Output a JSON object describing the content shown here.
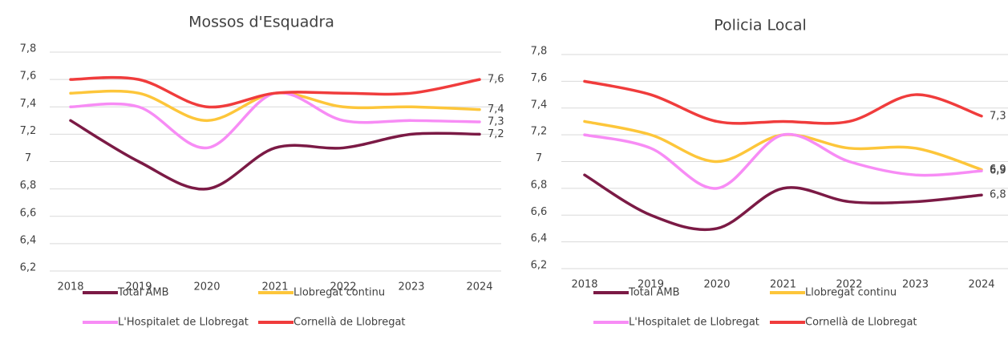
{
  "chart_data": [
    {
      "type": "line",
      "title": "Mossos d'Esquadra",
      "categories": [
        "2018",
        "2019",
        "2020",
        "2021",
        "2022",
        "2023",
        "2024"
      ],
      "ylim": [
        6.2,
        7.8
      ],
      "yticks": [
        {
          "value": 6.2,
          "label": "6,2"
        },
        {
          "value": 6.4,
          "label": "6,4"
        },
        {
          "value": 6.6,
          "label": "6,6"
        },
        {
          "value": 6.8,
          "label": "6,8"
        },
        7,
        {
          "value": 7.2,
          "label": "7,2"
        },
        {
          "value": 7.4,
          "label": "7,4"
        },
        {
          "value": 7.6,
          "label": "7,6"
        },
        {
          "value": 7.8,
          "label": "7,8"
        }
      ],
      "grid": true,
      "legend": "bottom",
      "series": [
        {
          "name": "Total AMB",
          "color": "#7b1a45",
          "values": [
            7.3,
            7.0,
            6.8,
            7.1,
            7.1,
            7.2,
            7.2
          ],
          "value_labels": [
            null,
            null,
            null,
            null,
            null,
            null,
            "7,2"
          ]
        },
        {
          "name": "Llobregat continu",
          "color": "#fdc63a",
          "values": [
            7.5,
            7.5,
            7.3,
            7.5,
            7.4,
            7.4,
            7.38
          ],
          "value_labels": [
            null,
            null,
            null,
            null,
            null,
            null,
            "7,4"
          ]
        },
        {
          "name": "L'Hospitalet de Llobregat",
          "color": "#f78cf5",
          "values": [
            7.4,
            7.4,
            7.1,
            7.5,
            7.3,
            7.3,
            7.29
          ],
          "value_labels": [
            null,
            null,
            null,
            null,
            null,
            null,
            "7,3"
          ]
        },
        {
          "name": "Cornellà de Llobregat",
          "color": "#f03c3c",
          "values": [
            7.6,
            7.6,
            7.4,
            7.5,
            7.5,
            7.5,
            7.6
          ],
          "value_labels": [
            null,
            null,
            null,
            null,
            null,
            null,
            "7,6"
          ]
        }
      ]
    },
    {
      "type": "line",
      "title": "Policia Local",
      "categories": [
        "2018",
        "2019",
        "2020",
        "2021",
        "2022",
        "2023",
        "2024"
      ],
      "ylim": [
        6.2,
        7.8
      ],
      "yticks": [
        {
          "value": 6.2,
          "label": "6,2"
        },
        {
          "value": 6.4,
          "label": "6,4"
        },
        {
          "value": 6.6,
          "label": "6,6"
        },
        {
          "value": 6.8,
          "label": "6,8"
        },
        7,
        {
          "value": 7.2,
          "label": "7,2"
        },
        {
          "value": 7.4,
          "label": "7,4"
        },
        {
          "value": 7.6,
          "label": "7,6"
        },
        {
          "value": 7.8,
          "label": "7,8"
        }
      ],
      "grid": true,
      "legend": "bottom",
      "series": [
        {
          "name": "Total AMB",
          "color": "#7b1a45",
          "values": [
            6.9,
            6.6,
            6.5,
            6.8,
            6.7,
            6.7,
            6.75
          ],
          "value_labels": [
            null,
            null,
            null,
            null,
            null,
            null,
            "6,8"
          ]
        },
        {
          "name": "Llobregat continu",
          "color": "#fdc63a",
          "values": [
            7.3,
            7.2,
            7.0,
            7.2,
            7.1,
            7.1,
            6.94
          ],
          "value_labels": [
            null,
            null,
            null,
            null,
            null,
            null,
            "6,9"
          ]
        },
        {
          "name": "L'Hospitalet de Llobregat",
          "color": "#f78cf5",
          "values": [
            7.2,
            7.1,
            6.8,
            7.2,
            7.0,
            6.9,
            6.93
          ],
          "value_labels": [
            null,
            null,
            null,
            null,
            null,
            null,
            "6,9"
          ]
        },
        {
          "name": "Cornellà de Llobregat",
          "color": "#f03c3c",
          "values": [
            7.6,
            7.5,
            7.3,
            7.3,
            7.3,
            7.5,
            7.34
          ],
          "value_labels": [
            null,
            null,
            null,
            null,
            null,
            null,
            "7,3"
          ]
        }
      ]
    }
  ]
}
